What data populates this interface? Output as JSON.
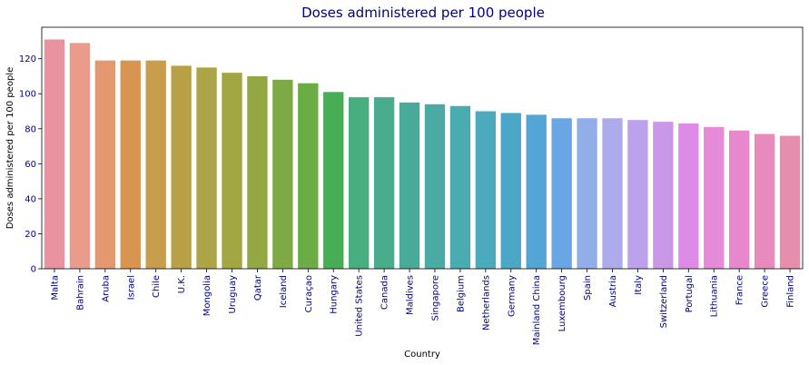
{
  "chart_data": {
    "type": "bar",
    "title": "Doses administered per 100 people",
    "xlabel": "Country",
    "ylabel": "Doses administered per 100 people",
    "ylim": [
      0,
      138
    ],
    "yticks": [
      0,
      20,
      40,
      60,
      80,
      100,
      120
    ],
    "grid": false,
    "categories": [
      "Malta",
      "Bahrain",
      "Aruba",
      "Israel",
      "Chile",
      "U.K.",
      "Mongolia",
      "Uruguay",
      "Qatar",
      "Iceland",
      "Curaçao",
      "Hungary",
      "United States",
      "Canada",
      "Maldives",
      "Singapore",
      "Belgium",
      "Netherlands",
      "Germany",
      "Mainland China",
      "Luxembourg",
      "Spain",
      "Austria",
      "Italy",
      "Switzerland",
      "Portugal",
      "Lithuania",
      "France",
      "Greece",
      "Finland"
    ],
    "values": [
      131,
      129,
      119,
      119,
      119,
      116,
      115,
      112,
      110,
      108,
      106,
      101,
      98,
      98,
      95,
      94,
      93,
      90,
      89,
      88,
      86,
      86,
      86,
      85,
      84,
      83,
      81,
      79,
      77,
      76
    ],
    "colors": [
      "#e8939f",
      "#e99b8c",
      "#e39870",
      "#d89451",
      "#c89d4c",
      "#b8a046",
      "#ada347",
      "#a2a643",
      "#93a844",
      "#7ea945",
      "#6bac45",
      "#47ae56",
      "#48ad7f",
      "#49ac8c",
      "#48aa99",
      "#4aaba4",
      "#4aabb0",
      "#4baabb",
      "#4aa8c6",
      "#53a6d4",
      "#6aa6e3",
      "#91aee8",
      "#adabeb",
      "#bca2ec",
      "#cb98e8",
      "#dd8be6",
      "#e58bd8",
      "#e688cb",
      "#e68bbc",
      "#e58ead"
    ]
  }
}
